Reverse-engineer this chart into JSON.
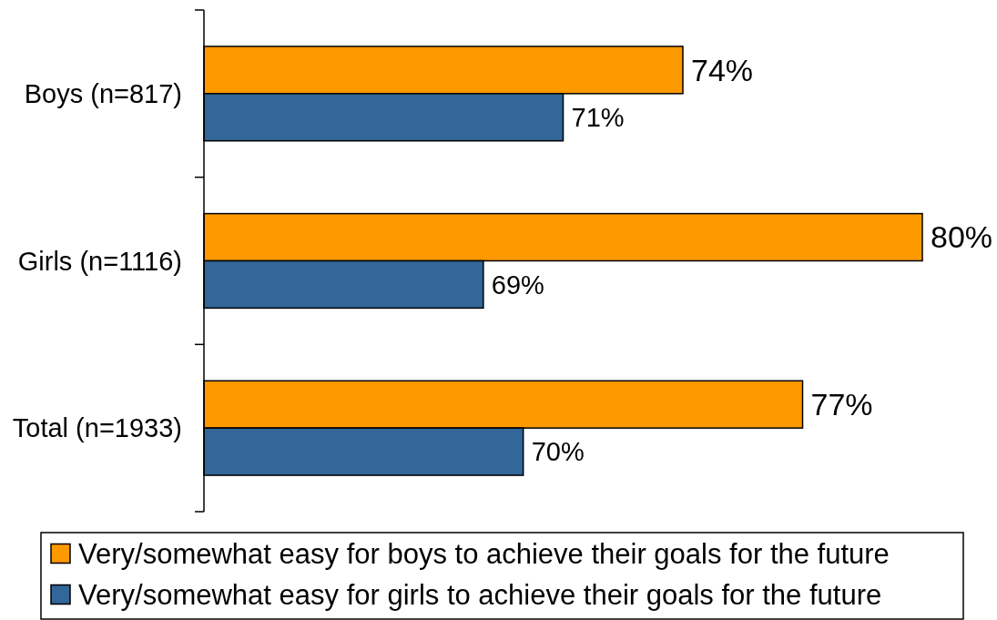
{
  "chart_data": {
    "type": "bar",
    "orientation": "horizontal",
    "categories": [
      "Boys (n=817)",
      "Girls (n=1116)",
      "Total (n=1933)"
    ],
    "series": [
      {
        "name": "Very/somewhat easy for boys to achieve their goals for the future",
        "color": "#ff9900",
        "values": [
          74,
          80,
          77
        ],
        "value_labels": [
          "74%",
          "80%",
          "77%"
        ]
      },
      {
        "name": "Very/somewhat easy for girls to achieve their goals for the future",
        "color": "#336699",
        "values": [
          71,
          69,
          70
        ],
        "value_labels": [
          "71%",
          "69%",
          "70%"
        ]
      }
    ],
    "xlim": [
      62,
      80
    ],
    "legend": "bottom",
    "tick_labels": "y"
  }
}
